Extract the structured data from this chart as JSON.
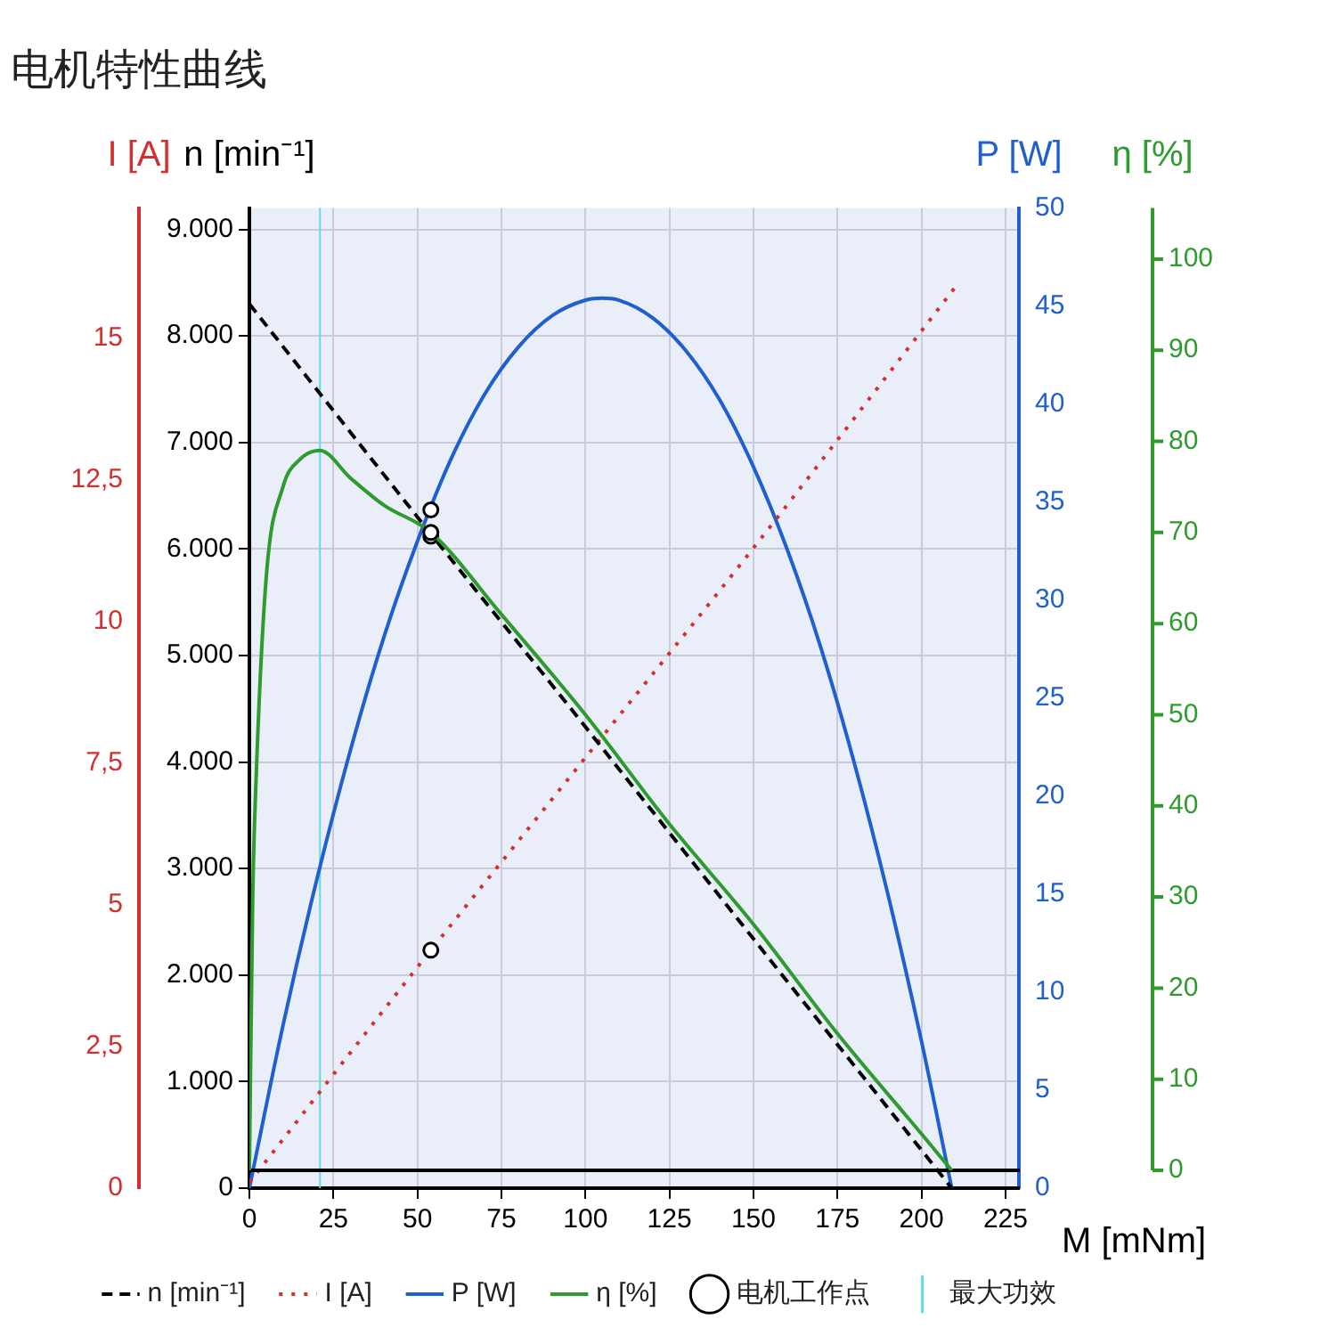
{
  "chart_data": [
    {
      "type": "line",
      "title": "电机特性曲线",
      "xlabel": "M [mNm]",
      "ylabel": "n [min⁻¹]",
      "y2label": "P [W]",
      "y3label": "I [A]",
      "xlim": [
        0,
        229
      ],
      "xticks": [
        0,
        25,
        50,
        75,
        100,
        125,
        150,
        175,
        200,
        225
      ],
      "ylim": [
        0,
        9200
      ],
      "yticks": [
        0,
        {
          "value": 1000,
          "label": "1.000"
        },
        {
          "value": 2000,
          "label": "2.000"
        },
        {
          "value": 3000,
          "label": "3.000"
        },
        {
          "value": 4000,
          "label": "4.000"
        },
        {
          "value": 5000,
          "label": "5.000"
        },
        {
          "value": 6000,
          "label": "6.000"
        },
        {
          "value": 7000,
          "label": "7.000"
        },
        {
          "value": 8000,
          "label": "8.000"
        },
        {
          "value": 9000,
          "label": "9.000"
        }
      ],
      "y2lim": [
        0,
        50
      ],
      "y2ticks": [
        0,
        5,
        10,
        15,
        20,
        25,
        30,
        35,
        40,
        45,
        50
      ],
      "y3lim": [
        0,
        17.3
      ],
      "y3ticks": [
        0,
        {
          "value": 2.5,
          "label": "2,5"
        },
        5,
        {
          "value": 7.5,
          "label": "7,5"
        },
        10,
        {
          "value": 12.5,
          "label": "12,5"
        },
        15
      ],
      "grid": true,
      "legend": "bottom",
      "series": [
        {
          "name": "n [min⁻¹]",
          "color": "#000000",
          "line_style": "dashed",
          "x": [
            0,
            50,
            100,
            150,
            209
          ],
          "values": [
            8300,
            6300,
            4330,
            2340,
            0
          ]
        },
        {
          "name": "I [A]",
          "axis": "y3",
          "color": "#d32f2f",
          "line_style": "dotted",
          "x": [
            0,
            50,
            100,
            150,
            210
          ],
          "values": [
            0.1,
            3.9,
            7.6,
            11.3,
            15.9
          ]
        },
        {
          "name": "P [W]",
          "axis": "y2",
          "color": "#1f5fcf",
          "x": [
            0,
            10,
            20,
            30,
            40,
            50,
            60,
            70,
            80,
            90,
            100,
            105,
            110,
            120,
            130,
            140,
            150,
            160,
            170,
            180,
            190,
            200,
            209
          ],
          "values": [
            0,
            8.3,
            15.7,
            22.3,
            28.1,
            33,
            37.2,
            40.5,
            42.9,
            44.5,
            45.3,
            45.4,
            45.3,
            44.4,
            42.7,
            40.2,
            36.8,
            32.6,
            27.6,
            21.7,
            15,
            7.5,
            0
          ]
        },
        {
          "name": "电机工作点",
          "type": "scatter",
          "color": "#000000",
          "marker": "circle",
          "x": [
            54
          ],
          "values": [
            6120
          ]
        },
        {
          "type": "scatter",
          "axis": "y2",
          "color": "#000000",
          "marker": "circle",
          "x": [
            54
          ],
          "values": [
            34.6
          ]
        },
        {
          "type": "scatter",
          "axis": "y3",
          "color": "#000000",
          "marker": "circle",
          "x": [
            54
          ],
          "values": [
            4.2
          ]
        }
      ],
      "ref_lines": [
        {
          "axis": "x",
          "value": 21,
          "label": "最大功效",
          "color": "#66d9e8"
        }
      ]
    },
    {
      "type": "line",
      "ylabel": "η [%]",
      "xlim": [
        0,
        229
      ],
      "ylim": [
        0,
        105.6
      ],
      "yticks": [
        0,
        10,
        20,
        30,
        40,
        50,
        60,
        70,
        80,
        90,
        100
      ],
      "tick_labels": "y",
      "series": [
        {
          "name": "η [%]",
          "color": "#2e9b2e",
          "x": [
            0,
            1,
            2,
            5,
            10,
            15,
            21,
            30,
            40,
            54,
            75,
            100,
            125,
            150,
            175,
            200,
            209
          ],
          "values": [
            0,
            30,
            43,
            65,
            75,
            78,
            79,
            76,
            73,
            70,
            61,
            50,
            38,
            27,
            15,
            4,
            0
          ]
        },
        {
          "type": "scatter",
          "color": "#000000",
          "marker": "circle",
          "x": [
            54
          ],
          "values": [
            70
          ]
        }
      ]
    }
  ]
}
